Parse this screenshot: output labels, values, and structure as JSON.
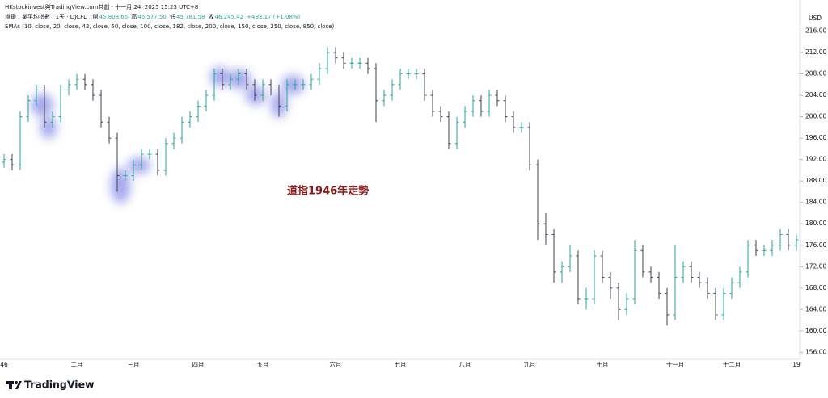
{
  "header": {
    "source": "HKstockinvest與TradingView.com共創 · 十一月 24, 2025 15:23 UTC+8",
    "symbol": "道瓊工業平均指數 · 1天 · DJCFD",
    "ohlc": [
      {
        "label": "開",
        "value": "45,808.65"
      },
      {
        "label": "高",
        "value": "46,577.50"
      },
      {
        "label": "低",
        "value": "45,781.58"
      },
      {
        "label": "收",
        "value": "46,245.42"
      }
    ],
    "change": "+493.17 (+1.08%)",
    "indicator": "SMAs (10, close, 20, close, 42, close, 50, close, 100, close, 182, close, 200, close, 150, close, 250, close, 850, close)",
    "currency": "USD",
    "brand": "TradingView"
  },
  "chart_data": {
    "type": "ohlc",
    "annotation": "道指1946年走勢",
    "up_color": "#26a69a",
    "down_color": "#3d4451",
    "categories": [
      "46",
      null,
      null,
      null,
      null,
      null,
      null,
      null,
      null,
      "二月",
      null,
      null,
      null,
      null,
      null,
      null,
      "三月",
      null,
      null,
      null,
      null,
      null,
      null,
      null,
      "四月",
      null,
      null,
      null,
      null,
      null,
      null,
      null,
      "五月",
      null,
      null,
      null,
      null,
      null,
      null,
      null,
      null,
      "六月",
      null,
      null,
      null,
      null,
      null,
      null,
      null,
      "七月",
      null,
      null,
      null,
      null,
      null,
      null,
      null,
      "八月",
      null,
      null,
      null,
      null,
      null,
      null,
      null,
      "九月",
      null,
      null,
      null,
      null,
      null,
      null,
      null,
      null,
      "十月",
      null,
      null,
      null,
      null,
      null,
      null,
      null,
      null,
      "十一月",
      null,
      null,
      null,
      null,
      null,
      null,
      "十二月",
      null,
      null,
      null,
      null,
      null,
      null,
      null,
      "19"
    ],
    "open": [
      191.5,
      192,
      191,
      200,
      203,
      205,
      199,
      200,
      205,
      206,
      207,
      206,
      204,
      199,
      196,
      189,
      189,
      191,
      193,
      193,
      190,
      195,
      196,
      199,
      200,
      202,
      204,
      208,
      206,
      207,
      208,
      206,
      204,
      206,
      205,
      202,
      206,
      206,
      206,
      207,
      209,
      212,
      211,
      210,
      210,
      210,
      209,
      203,
      204,
      206,
      208,
      208,
      208,
      204,
      201,
      200,
      195,
      199,
      201,
      203,
      201,
      204,
      203,
      200,
      198,
      198,
      191,
      180,
      178,
      171,
      172,
      174,
      166,
      166,
      174,
      170,
      168,
      164,
      166,
      175,
      171,
      170,
      167,
      163,
      170,
      172,
      170,
      169,
      167,
      163,
      167,
      169,
      171,
      176,
      175,
      175,
      176,
      178,
      176
    ],
    "high": [
      193,
      193,
      201,
      204,
      206,
      206,
      201,
      206,
      207,
      208,
      208,
      207,
      205,
      200,
      197,
      190,
      192,
      194,
      194,
      194,
      196,
      197,
      200,
      201,
      203,
      205,
      209,
      209,
      208,
      209,
      209,
      207,
      207,
      207,
      206,
      207,
      207,
      207,
      208,
      210,
      213,
      213,
      212,
      211,
      211,
      211,
      210,
      205,
      207,
      209,
      209,
      209,
      209,
      205,
      202,
      201,
      200,
      202,
      204,
      204,
      205,
      205,
      204,
      201,
      199,
      199,
      192,
      182,
      179,
      173,
      176,
      175,
      168,
      175,
      175,
      171,
      169,
      167,
      177,
      176,
      172,
      171,
      168,
      176,
      173,
      173,
      171,
      170,
      168,
      168,
      170,
      172,
      177,
      177,
      176,
      177,
      179,
      179,
      178
    ],
    "low": [
      190.5,
      190,
      190,
      199,
      202,
      198,
      198,
      199,
      204,
      205,
      205,
      203,
      198,
      195,
      186,
      188,
      188,
      190,
      192,
      189,
      189,
      194,
      195,
      198,
      199,
      201,
      203,
      205,
      205,
      206,
      205,
      203,
      203,
      204,
      200,
      201,
      205,
      205,
      205,
      206,
      208,
      210,
      209,
      209,
      209,
      208,
      199,
      202,
      203,
      205,
      207,
      207,
      203,
      200,
      199,
      194,
      194,
      198,
      200,
      200,
      200,
      202,
      199,
      197,
      197,
      190,
      177,
      176,
      169,
      169,
      171,
      165,
      164,
      165,
      169,
      166,
      162,
      163,
      165,
      170,
      169,
      166,
      161,
      162,
      169,
      169,
      168,
      166,
      162,
      162,
      166,
      168,
      170,
      174,
      174,
      174,
      175,
      175,
      175
    ],
    "close": [
      192,
      191,
      200,
      203,
      205,
      199,
      200,
      205,
      206,
      207,
      206,
      204,
      199,
      196,
      189,
      189,
      191,
      193,
      193,
      190,
      195,
      196,
      199,
      200,
      202,
      204,
      208,
      206,
      207,
      208,
      206,
      204,
      206,
      205,
      202,
      206,
      206,
      206,
      207,
      209,
      212,
      211,
      210,
      210,
      210,
      209,
      203,
      204,
      206,
      208,
      208,
      208,
      204,
      201,
      200,
      195,
      199,
      201,
      203,
      201,
      204,
      203,
      200,
      198,
      198,
      191,
      180,
      178,
      171,
      172,
      174,
      166,
      166,
      174,
      170,
      168,
      164,
      166,
      175,
      171,
      170,
      167,
      163,
      170,
      172,
      170,
      169,
      167,
      163,
      167,
      169,
      171,
      176,
      175,
      175,
      176,
      178,
      176,
      177
    ],
    "ylim": [
      155,
      220
    ],
    "yticks": [
      {
        "value": 156,
        "label": "156.00"
      },
      {
        "value": 160,
        "label": "160.00"
      },
      {
        "value": 164,
        "label": "164.00"
      },
      {
        "value": 168,
        "label": "168.00"
      },
      {
        "value": 172,
        "label": "172.00"
      },
      {
        "value": 176,
        "label": "176.00"
      },
      {
        "value": 180,
        "label": "180.00"
      },
      {
        "value": 184,
        "label": "184.00"
      },
      {
        "value": 188,
        "label": "188.00"
      },
      {
        "value": 192,
        "label": "192.00"
      },
      {
        "value": 196,
        "label": "196.00"
      },
      {
        "value": 200,
        "label": "200.00"
      },
      {
        "value": 204,
        "label": "204.00"
      },
      {
        "value": 208,
        "label": "208.00"
      },
      {
        "value": 212,
        "label": "212.00"
      },
      {
        "value": 216,
        "label": "216.00"
      }
    ]
  }
}
